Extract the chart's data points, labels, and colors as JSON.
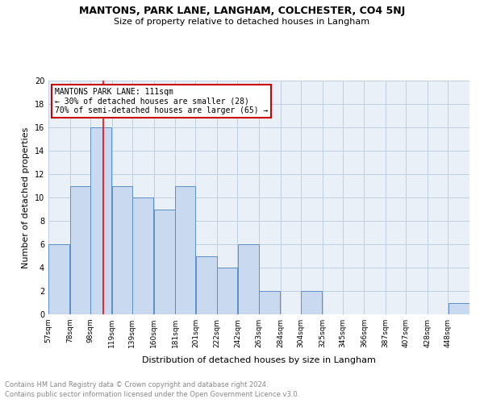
{
  "title": "MANTONS, PARK LANE, LANGHAM, COLCHESTER, CO4 5NJ",
  "subtitle": "Size of property relative to detached houses in Langham",
  "xlabel": "Distribution of detached houses by size in Langham",
  "ylabel": "Number of detached properties",
  "bar_edges": [
    57,
    78,
    98,
    119,
    139,
    160,
    181,
    201,
    222,
    242,
    263,
    284,
    304,
    325,
    345,
    366,
    387,
    407,
    428,
    448,
    469
  ],
  "bar_heights": [
    6,
    11,
    16,
    11,
    10,
    9,
    11,
    5,
    4,
    6,
    2,
    0,
    2,
    0,
    0,
    0,
    0,
    0,
    0,
    1
  ],
  "bar_color": "#c9d9f0",
  "bar_edge_color": "#5b8fc9",
  "grid_color": "#c0cfe0",
  "bg_color": "#eaf0f8",
  "red_line_x": 111,
  "annotation_title": "MANTONS PARK LANE: 111sqm",
  "annotation_line1": "← 30% of detached houses are smaller (28)",
  "annotation_line2": "70% of semi-detached houses are larger (65) →",
  "annotation_box_color": "#ffffff",
  "annotation_box_edge": "#cc0000",
  "footer_line1": "Contains HM Land Registry data © Crown copyright and database right 2024.",
  "footer_line2": "Contains public sector information licensed under the Open Government Licence v3.0.",
  "ylim": [
    0,
    20
  ],
  "yticks": [
    0,
    2,
    4,
    6,
    8,
    10,
    12,
    14,
    16,
    18,
    20
  ],
  "title_fontsize": 9,
  "subtitle_fontsize": 8,
  "ylabel_fontsize": 8,
  "xlabel_fontsize": 8,
  "tick_fontsize": 6.5,
  "footer_fontsize": 6,
  "ann_fontsize": 7
}
